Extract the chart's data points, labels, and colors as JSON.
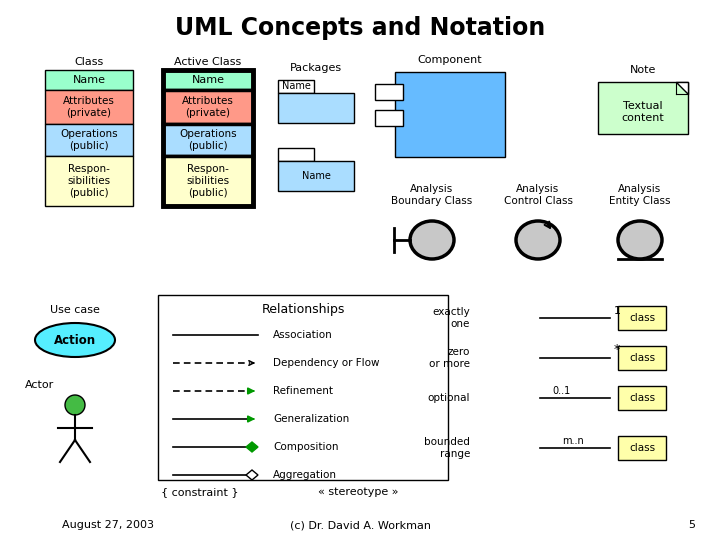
{
  "title": "UML Concepts and Notation",
  "bg_color": "#ffffff",
  "class_name_bg": "#99ffcc",
  "class_attr_bg": "#ff9988",
  "class_ops_bg": "#aaddff",
  "class_resp_bg": "#ffffcc",
  "note_bg": "#ccffcc",
  "light_blue": "#aaddff",
  "sky_blue": "#66bbff",
  "cyan_ellipse": "#55eeff",
  "actor_head": "#44bb44",
  "yellow_class": "#ffffaa",
  "footer_date": "August 27, 2003",
  "footer_copy": "(c) Dr. David A. Workman",
  "footer_page": "5"
}
